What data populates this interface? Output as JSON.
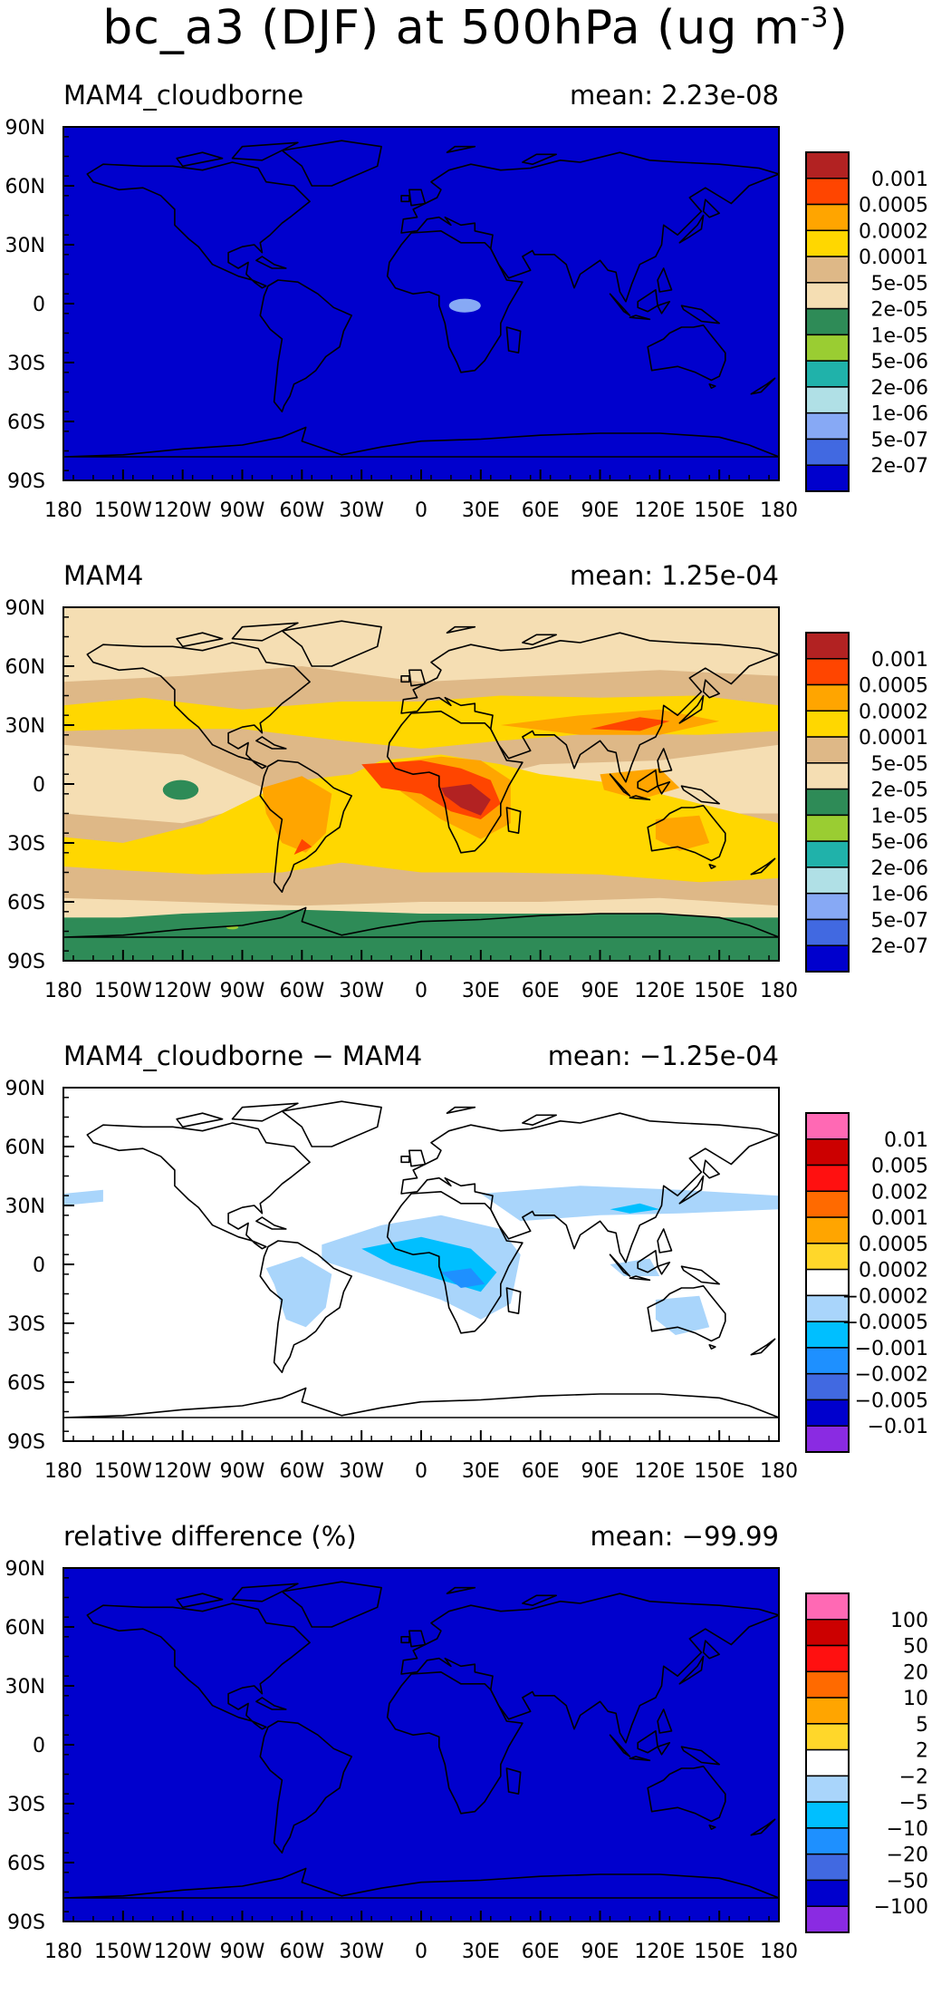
{
  "title": {
    "text": "bc_a3 (DJF) at 500hPa (ug m",
    "exponent": "-3",
    "close": ")"
  },
  "axes": {
    "lat_ticks": [
      "90N",
      "60N",
      "30N",
      "0",
      "30S",
      "60S",
      "90S"
    ],
    "lon_ticks": [
      "180",
      "150W",
      "120W",
      "90W",
      "60W",
      "30W",
      "0",
      "30E",
      "60E",
      "90E",
      "120E",
      "150E",
      "180"
    ]
  },
  "colorbars": {
    "absolute": {
      "colors": [
        "#b22222",
        "#ff4500",
        "#ffa500",
        "#ffd700",
        "#deb887",
        "#f5deb3",
        "#2e8b57",
        "#9acd32",
        "#20b2aa",
        "#b0e0e6",
        "#87a9f5",
        "#4169e1",
        "#0000cd"
      ],
      "labels": [
        "0.001",
        "0.0005",
        "0.0002",
        "0.0001",
        "5e-05",
        "2e-05",
        "1e-05",
        "5e-06",
        "2e-06",
        "1e-06",
        "5e-07",
        "2e-07"
      ]
    },
    "difference": {
      "colors": [
        "#ff69b4",
        "#cc0000",
        "#ff1010",
        "#ff6a00",
        "#ffa500",
        "#ffd72a",
        "#ffffff",
        "#a9d5fb",
        "#00bfff",
        "#1e90ff",
        "#4169e1",
        "#0000cd",
        "#8a2be2"
      ],
      "labels": [
        "0.01",
        "0.005",
        "0.002",
        "0.001",
        "0.0005",
        "0.0002",
        "-0.0002",
        "-0.0005",
        "-0.001",
        "-0.002",
        "-0.005",
        "-0.01"
      ]
    },
    "relative": {
      "colors": [
        "#ff69b4",
        "#cc0000",
        "#ff1010",
        "#ff6a00",
        "#ffa500",
        "#ffd72a",
        "#ffffff",
        "#a9d5fb",
        "#00bfff",
        "#1e90ff",
        "#4169e1",
        "#0000cd",
        "#8a2be2"
      ],
      "labels": [
        "100",
        "50",
        "20",
        "10",
        "5",
        "2",
        "-2",
        "-5",
        "-10",
        "-20",
        "-50",
        "-100"
      ]
    }
  },
  "panels": [
    {
      "id": "p1",
      "title": "MAM4_cloudborne",
      "mean": "mean: 2.23e-08",
      "colorbar": "absolute",
      "background": "#0000cd"
    },
    {
      "id": "p2",
      "title": "MAM4",
      "mean": "mean: 1.25e-04",
      "colorbar": "absolute",
      "background": "#f5deb3"
    },
    {
      "id": "p3",
      "title": "MAM4_cloudborne − MAM4",
      "mean": "mean: −1.25e-04",
      "colorbar": "difference",
      "background": "#ffffff"
    },
    {
      "id": "p4",
      "title": "relative difference (%)",
      "mean": "mean: −99.99",
      "colorbar": "relative",
      "background": "#0000cd"
    }
  ]
}
